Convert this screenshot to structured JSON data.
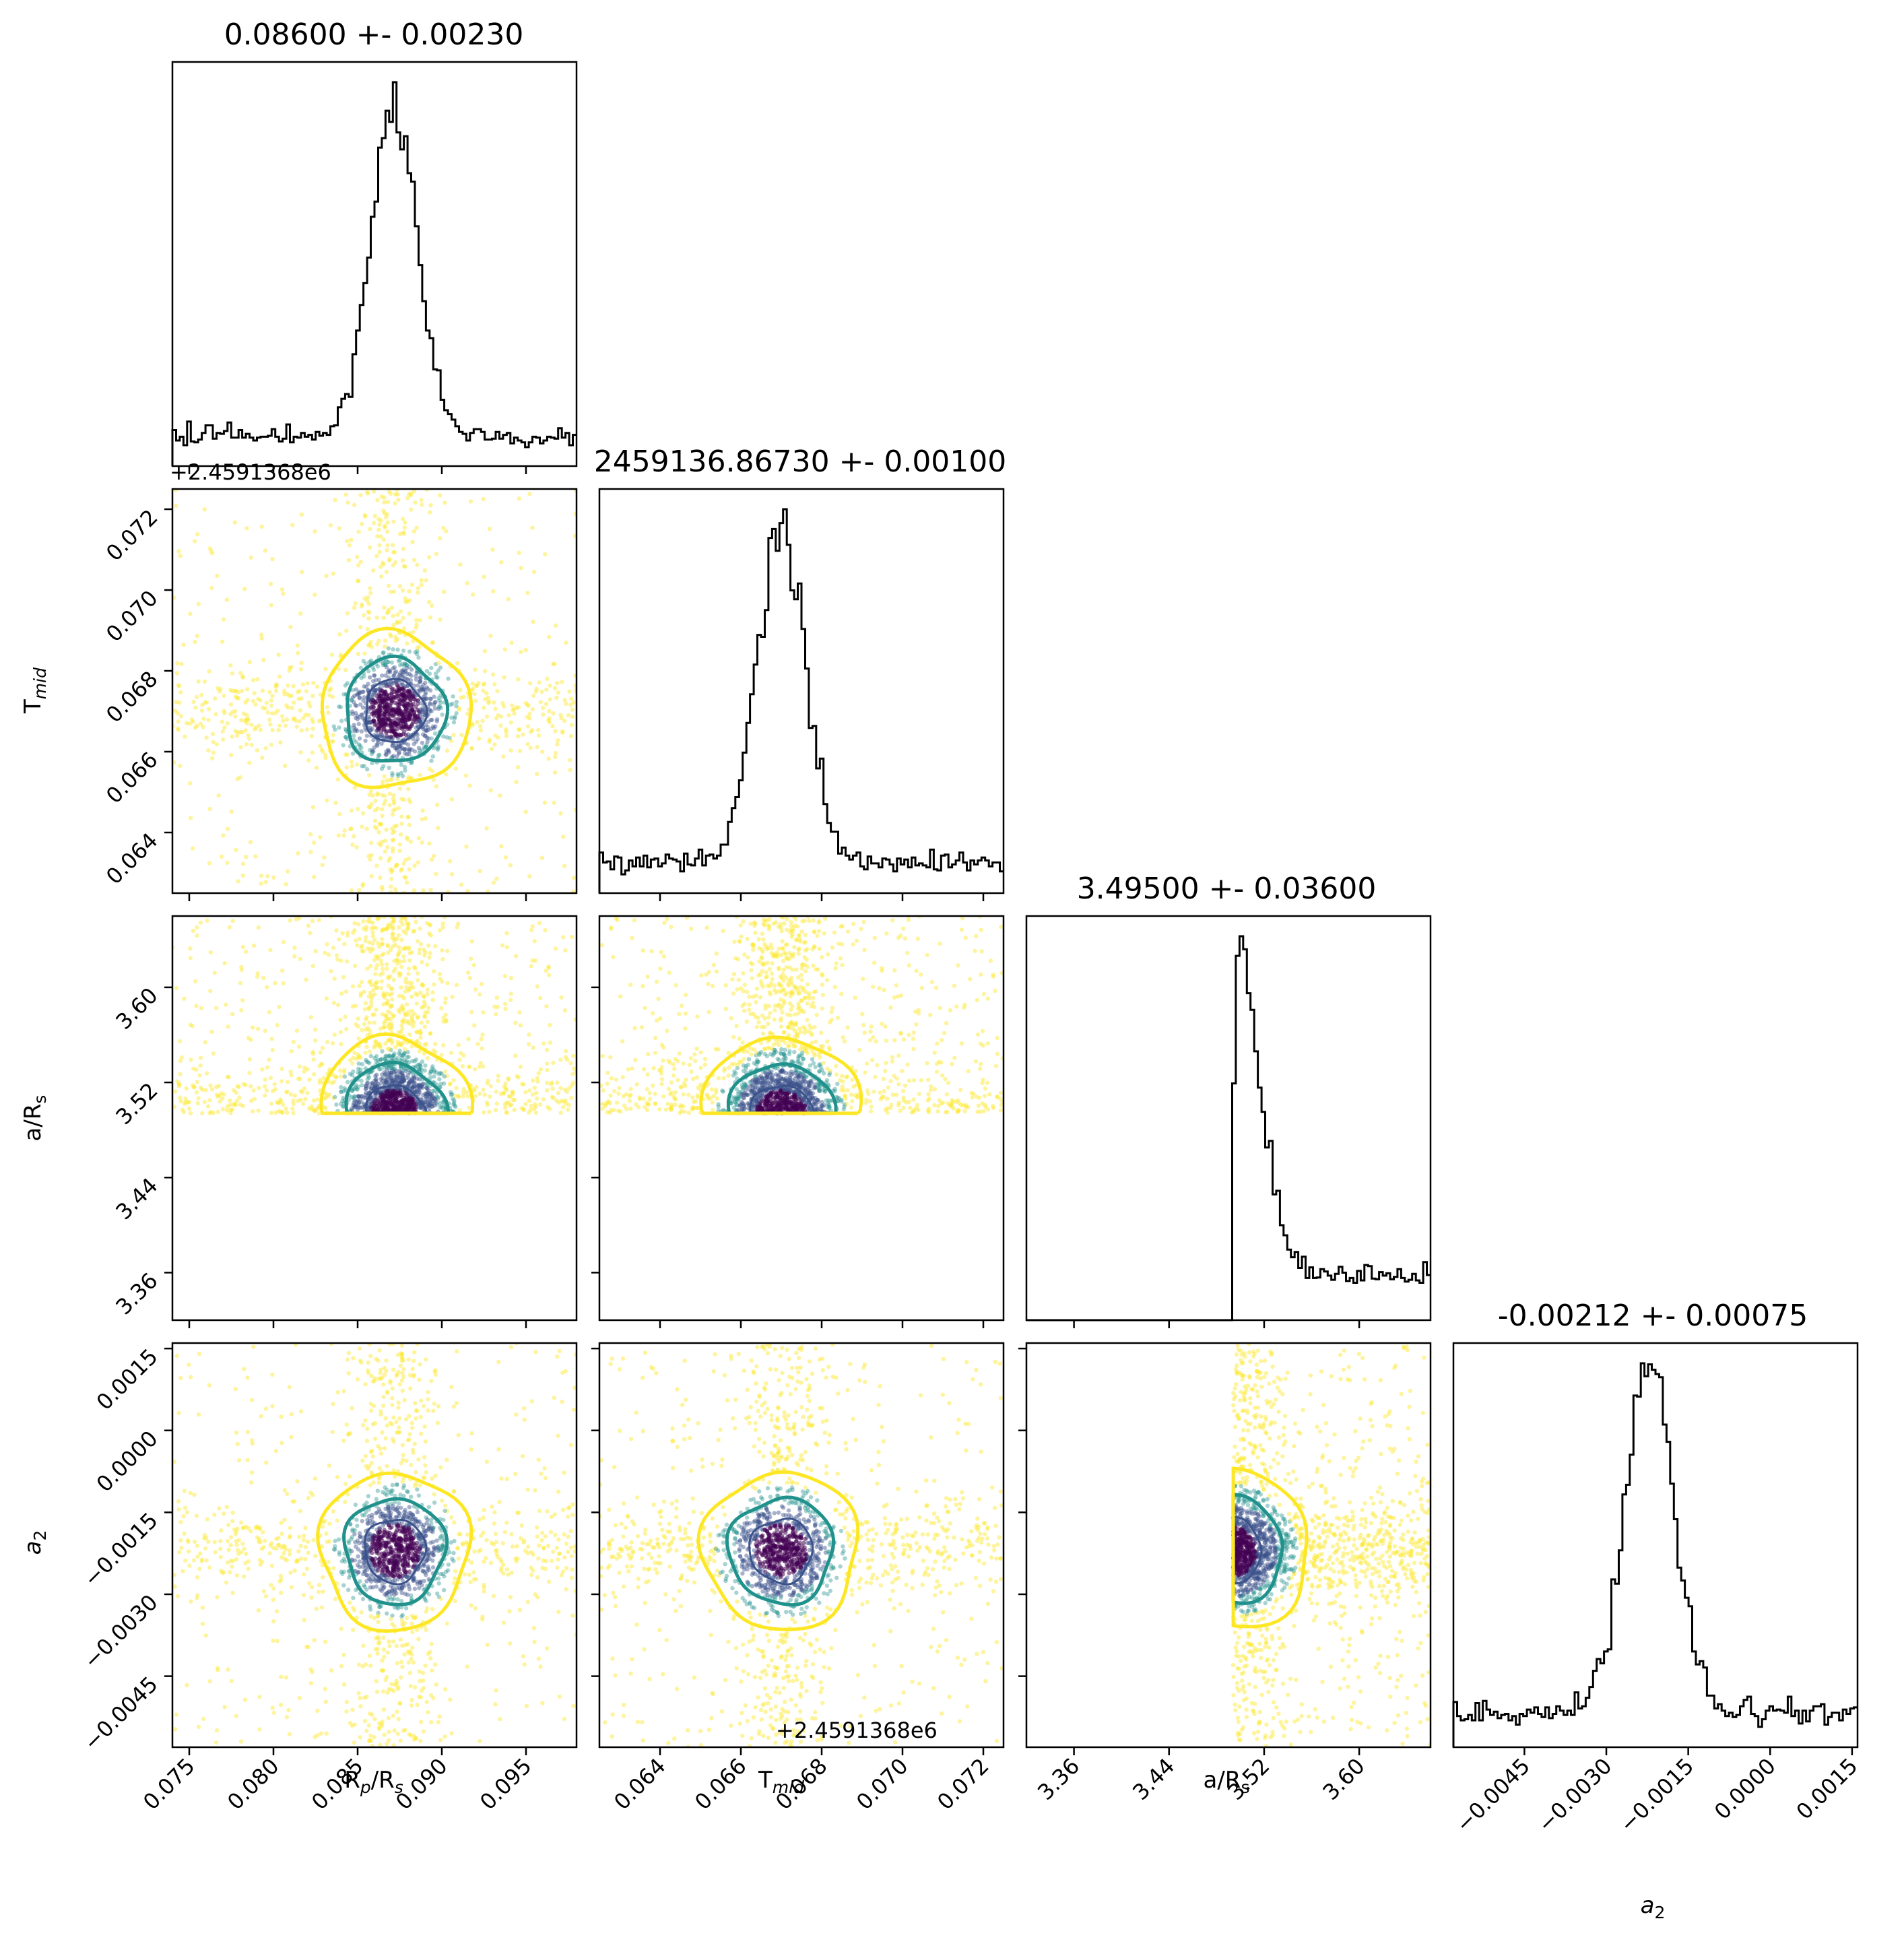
{
  "chart_data": {
    "type": "scatter",
    "subtype": "corner-plot",
    "parameters": [
      {
        "key": "rprs",
        "label_main": "R",
        "label_sub": "p",
        "label_mid": "/R",
        "label_sub2": "s",
        "axis": [
          0.074,
          0.098
        ],
        "ticks": [
          0.075,
          0.08,
          0.085,
          0.09,
          0.095
        ],
        "tick_labels": [
          "0.075",
          "0.080",
          "0.085",
          "0.090",
          "0.095"
        ],
        "mean": 0.086,
        "sigma": 0.0023,
        "peak": 0.0872,
        "title": "0.08600 +- 0.00230",
        "offset_label": "+2.4591368e6"
      },
      {
        "key": "tmid",
        "label_main": "T",
        "label_sub": "mid",
        "label_mid": "",
        "label_sub2": "",
        "axis": [
          0.0625,
          0.0725
        ],
        "ticks": [
          0.064,
          0.066,
          0.068,
          0.07,
          0.072
        ],
        "tick_labels": [
          "0.064",
          "0.066",
          "0.068",
          "0.070",
          "0.072"
        ],
        "mean": 0.0673,
        "sigma": 0.001,
        "peak": 0.067,
        "title": "2459136.86730 +- 0.00100",
        "offset_label": "+2.4591368e6"
      },
      {
        "key": "ars",
        "label_main": "a/R",
        "label_sub": "s",
        "label_mid": "",
        "label_sub2": "",
        "axis": [
          3.32,
          3.66
        ],
        "ticks": [
          3.36,
          3.44,
          3.52,
          3.6
        ],
        "tick_labels": [
          "3.36",
          "3.44",
          "3.52",
          "3.60"
        ],
        "mean": 3.495,
        "sigma": 0.036,
        "peak": 3.49,
        "cutoff": 3.494,
        "title": "3.49500 +- 0.03600"
      },
      {
        "key": "a2",
        "label_main": "a",
        "label_sub": "2",
        "label_mid": "",
        "label_sub2": "",
        "axis": [
          -0.0058,
          0.0016
        ],
        "ticks": [
          -0.0045,
          -0.003,
          -0.0015,
          0.0,
          0.0015
        ],
        "tick_labels": [
          "−0.0045",
          "−0.0030",
          "−0.0015",
          "0.0000",
          "0.0015"
        ],
        "mean": -0.00212,
        "sigma": 0.00075,
        "peak": -0.0022,
        "title": "-0.00212 +- 0.00075"
      }
    ],
    "contour_levels": [
      "inner",
      "middle",
      "outer"
    ],
    "colors": {
      "inner": "#3b528b",
      "middle": "#21918c",
      "outer": "#fde725",
      "dense": "#440154",
      "hist": "#000000"
    },
    "grid": false,
    "legend": "none"
  }
}
